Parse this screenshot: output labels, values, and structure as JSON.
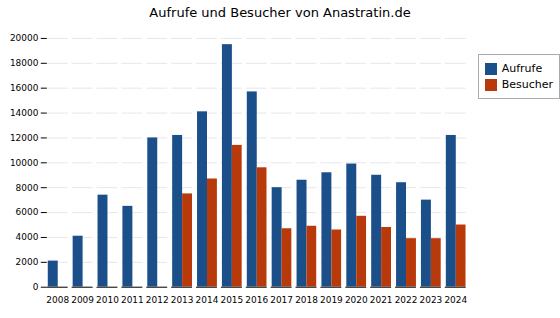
{
  "chart_data": {
    "type": "bar",
    "title": "Aufrufe und Besucher von Anastratin.de",
    "categories": [
      "2008",
      "2009",
      "2010",
      "2011",
      "2012",
      "2013",
      "2014",
      "2015",
      "2016",
      "2017",
      "2018",
      "2019",
      "2020",
      "2021",
      "2022",
      "2023",
      "2024"
    ],
    "series": [
      {
        "name": "Aufrufe",
        "color": "#1B4F8A",
        "values": [
          2100,
          4100,
          7400,
          6500,
          12000,
          12200,
          14100,
          19500,
          15700,
          8000,
          8600,
          9200,
          9900,
          9000,
          8400,
          7000,
          12200
        ]
      },
      {
        "name": "Besucher",
        "color": "#B83A0A",
        "values": [
          0,
          0,
          0,
          0,
          0,
          7500,
          8700,
          11400,
          9600,
          4700,
          4900,
          4600,
          5700,
          4800,
          3900,
          3900,
          5000
        ]
      }
    ],
    "ylim": [
      0,
      20000
    ],
    "yticks": [
      0,
      2000,
      4000,
      6000,
      8000,
      10000,
      12000,
      14000,
      16000,
      18000,
      20000
    ],
    "grid": true,
    "legend": "right"
  }
}
